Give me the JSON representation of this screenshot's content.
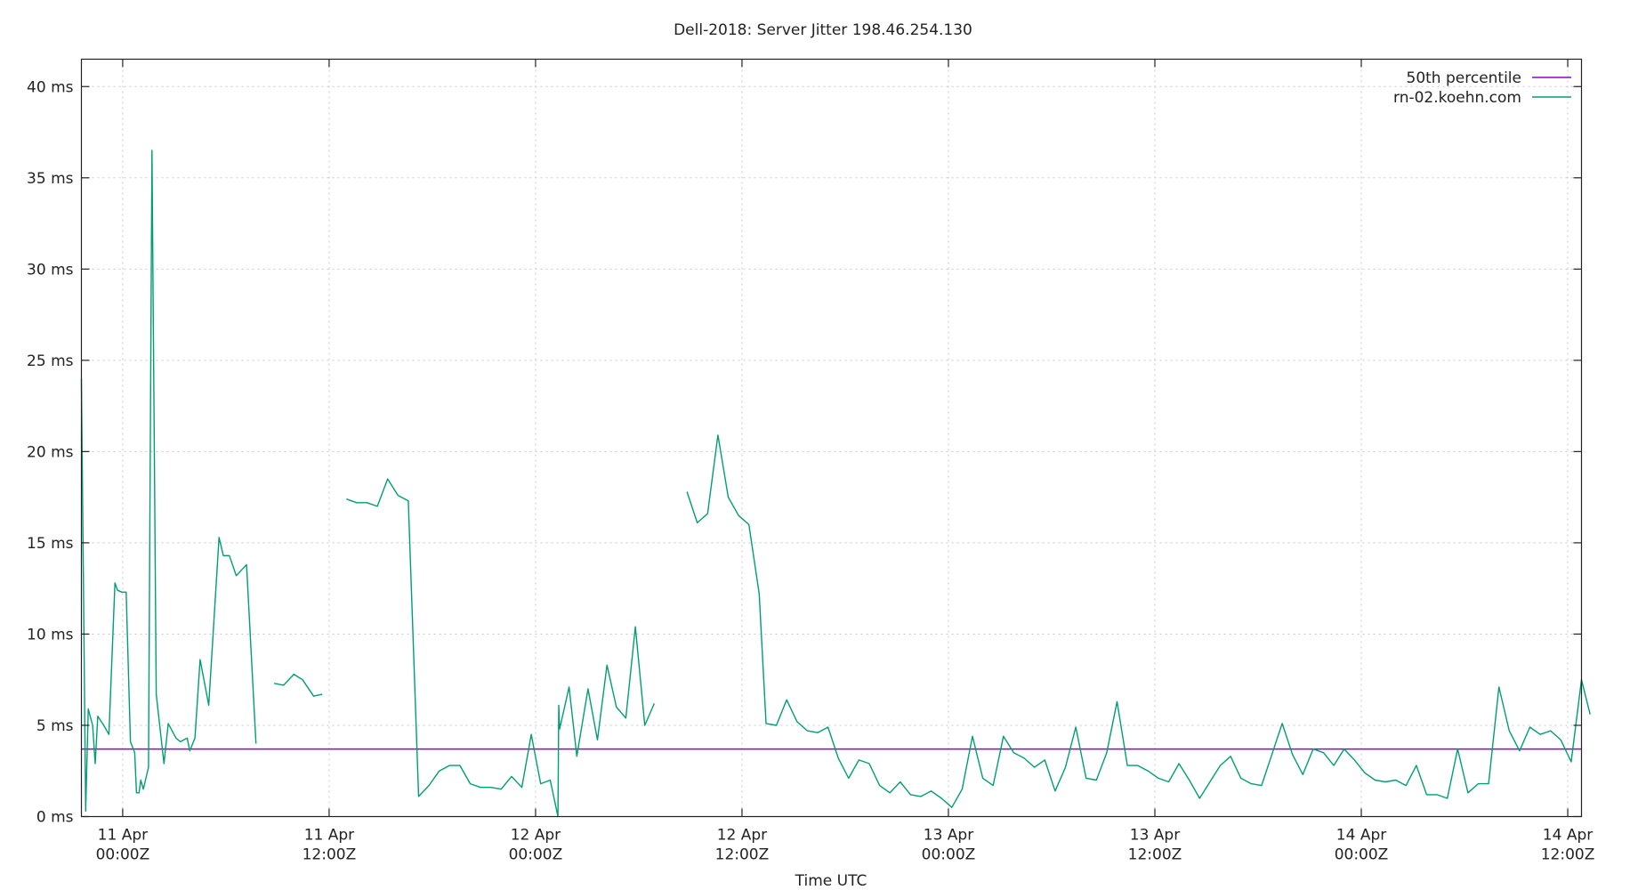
{
  "chart_data": {
    "type": "line",
    "title": "Dell-2018: Server Jitter 198.46.254.130",
    "xlabel": "Time UTC",
    "ylabel": "",
    "x_unit": "hours since 11 Apr 00:00Z",
    "xlim": [
      -2.4,
      84.8
    ],
    "ylim": [
      0,
      41.5
    ],
    "y_ticks": [
      {
        "value": 0,
        "label": "0 ms"
      },
      {
        "value": 5,
        "label": "5 ms"
      },
      {
        "value": 10,
        "label": "10 ms"
      },
      {
        "value": 15,
        "label": "15 ms"
      },
      {
        "value": 20,
        "label": "20 ms"
      },
      {
        "value": 25,
        "label": "25 ms"
      },
      {
        "value": 30,
        "label": "30 ms"
      },
      {
        "value": 35,
        "label": "35 ms"
      },
      {
        "value": 40,
        "label": "40 ms"
      }
    ],
    "x_ticks": [
      {
        "value": 0,
        "line1": "11 Apr",
        "line2": "00:00Z"
      },
      {
        "value": 12,
        "line1": "11 Apr",
        "line2": "12:00Z"
      },
      {
        "value": 24,
        "line1": "12 Apr",
        "line2": "00:00Z"
      },
      {
        "value": 36,
        "line1": "12 Apr",
        "line2": "12:00Z"
      },
      {
        "value": 48,
        "line1": "13 Apr",
        "line2": "00:00Z"
      },
      {
        "value": 60,
        "line1": "13 Apr",
        "line2": "12:00Z"
      },
      {
        "value": 72,
        "line1": "14 Apr",
        "line2": "00:00Z"
      },
      {
        "value": 84,
        "line1": "14 Apr",
        "line2": "12:00Z"
      }
    ],
    "grid": true,
    "legend_position": "top-right",
    "series": [
      {
        "name": "50th percentile",
        "color": "#9400d3",
        "kind": "hline",
        "value": 3.7
      },
      {
        "name": "rn-02.koehn.com",
        "color": "#009e73",
        "kind": "line",
        "segments": [
          [
            [
              -2.4,
              24
            ],
            [
              -2.15,
              0.3
            ],
            [
              -2.0,
              5.9
            ],
            [
              -1.75,
              5.0
            ],
            [
              -1.6,
              2.9
            ],
            [
              -1.45,
              5.5
            ],
            [
              -1.1,
              5.0
            ],
            [
              -0.8,
              4.5
            ],
            [
              -0.45,
              12.8
            ],
            [
              -0.3,
              12.4
            ],
            [
              -0.05,
              12.3
            ],
            [
              0.2,
              12.3
            ],
            [
              0.45,
              4.1
            ],
            [
              0.7,
              3.5
            ],
            [
              0.8,
              1.3
            ],
            [
              0.95,
              1.3
            ],
            [
              1.05,
              2.0
            ],
            [
              1.2,
              1.5
            ],
            [
              1.5,
              2.7
            ],
            [
              1.7,
              36.5
            ],
            [
              1.95,
              6.7
            ],
            [
              2.4,
              2.9
            ],
            [
              2.65,
              5.1
            ],
            [
              3.1,
              4.3
            ],
            [
              3.35,
              4.1
            ],
            [
              3.75,
              4.3
            ],
            [
              3.9,
              3.6
            ],
            [
              4.2,
              4.3
            ],
            [
              4.5,
              8.6
            ],
            [
              5.0,
              6.1
            ],
            [
              5.6,
              15.3
            ],
            [
              5.85,
              14.3
            ],
            [
              6.2,
              14.3
            ],
            [
              6.6,
              13.2
            ],
            [
              7.2,
              13.8
            ],
            [
              7.75,
              4.0
            ]
          ],
          [
            [
              8.8,
              7.3
            ],
            [
              9.35,
              7.2
            ],
            [
              9.95,
              7.8
            ],
            [
              10.45,
              7.5
            ],
            [
              11.1,
              6.6
            ],
            [
              11.6,
              6.7
            ]
          ],
          [
            [
              13.0,
              17.4
            ],
            [
              13.6,
              17.2
            ],
            [
              14.2,
              17.2
            ],
            [
              14.8,
              17.0
            ],
            [
              15.4,
              18.5
            ],
            [
              16.0,
              17.6
            ],
            [
              16.6,
              17.3
            ],
            [
              17.2,
              1.1
            ],
            [
              17.8,
              1.7
            ],
            [
              18.4,
              2.5
            ],
            [
              19.0,
              2.8
            ],
            [
              19.6,
              2.8
            ],
            [
              20.2,
              1.8
            ],
            [
              20.8,
              1.6
            ],
            [
              21.4,
              1.6
            ],
            [
              22.0,
              1.5
            ],
            [
              22.6,
              2.2
            ],
            [
              23.2,
              1.6
            ],
            [
              23.75,
              4.5
            ],
            [
              24.3,
              1.8
            ],
            [
              24.85,
              2.0
            ],
            [
              25.3,
              0.0
            ],
            [
              25.35,
              6.1
            ],
            [
              25.4,
              4.8
            ],
            [
              25.95,
              7.1
            ],
            [
              26.4,
              3.3
            ],
            [
              27.05,
              7.0
            ],
            [
              27.6,
              4.2
            ],
            [
              28.15,
              8.3
            ],
            [
              28.7,
              6.0
            ],
            [
              29.25,
              5.4
            ],
            [
              29.8,
              10.4
            ],
            [
              30.35,
              5.0
            ],
            [
              30.9,
              6.2
            ]
          ],
          [
            [
              32.8,
              17.8
            ],
            [
              33.4,
              16.1
            ],
            [
              34.0,
              16.6
            ],
            [
              34.6,
              20.9
            ],
            [
              35.2,
              17.5
            ],
            [
              35.8,
              16.5
            ],
            [
              36.4,
              16.0
            ],
            [
              37.0,
              12.2
            ],
            [
              37.4,
              5.1
            ],
            [
              38.0,
              5.0
            ],
            [
              38.6,
              6.4
            ],
            [
              39.2,
              5.2
            ],
            [
              39.8,
              4.7
            ],
            [
              40.4,
              4.6
            ],
            [
              41.0,
              4.9
            ],
            [
              41.6,
              3.2
            ],
            [
              42.2,
              2.1
            ],
            [
              42.8,
              3.1
            ],
            [
              43.4,
              2.9
            ],
            [
              44.0,
              1.7
            ],
            [
              44.6,
              1.3
            ],
            [
              45.2,
              1.9
            ],
            [
              45.8,
              1.2
            ],
            [
              46.4,
              1.1
            ],
            [
              47.0,
              1.4
            ],
            [
              47.6,
              1.0
            ],
            [
              48.2,
              0.5
            ],
            [
              48.8,
              1.5
            ],
            [
              49.4,
              4.4
            ],
            [
              50.0,
              2.1
            ],
            [
              50.6,
              1.7
            ],
            [
              51.2,
              4.4
            ],
            [
              51.8,
              3.5
            ],
            [
              52.4,
              3.2
            ],
            [
              53.0,
              2.7
            ],
            [
              53.6,
              3.1
            ],
            [
              54.2,
              1.4
            ],
            [
              54.8,
              2.7
            ],
            [
              55.4,
              4.9
            ],
            [
              56.0,
              2.1
            ],
            [
              56.6,
              2.0
            ],
            [
              57.2,
              3.5
            ],
            [
              57.8,
              6.3
            ],
            [
              58.4,
              2.8
            ],
            [
              59.0,
              2.8
            ],
            [
              59.6,
              2.5
            ],
            [
              60.2,
              2.1
            ],
            [
              60.8,
              1.9
            ],
            [
              61.4,
              2.9
            ],
            [
              62.0,
              2.0
            ],
            [
              62.6,
              1.0
            ],
            [
              63.2,
              1.9
            ],
            [
              63.8,
              2.8
            ],
            [
              64.4,
              3.3
            ],
            [
              65.0,
              2.1
            ],
            [
              65.6,
              1.8
            ],
            [
              66.2,
              1.7
            ],
            [
              66.8,
              3.4
            ],
            [
              67.4,
              5.1
            ],
            [
              68.0,
              3.4
            ],
            [
              68.6,
              2.3
            ],
            [
              69.2,
              3.7
            ],
            [
              69.8,
              3.5
            ],
            [
              70.4,
              2.8
            ],
            [
              71.0,
              3.7
            ],
            [
              71.6,
              3.1
            ],
            [
              72.2,
              2.4
            ],
            [
              72.8,
              2.0
            ],
            [
              73.4,
              1.9
            ],
            [
              74.0,
              2.0
            ],
            [
              74.6,
              1.7
            ],
            [
              75.2,
              2.8
            ],
            [
              75.8,
              1.2
            ],
            [
              76.4,
              1.2
            ],
            [
              77.0,
              1.0
            ],
            [
              77.6,
              3.7
            ],
            [
              78.2,
              1.3
            ],
            [
              78.8,
              1.8
            ],
            [
              79.4,
              1.8
            ],
            [
              80.0,
              7.1
            ],
            [
              80.6,
              4.7
            ],
            [
              81.2,
              3.6
            ],
            [
              81.8,
              4.9
            ],
            [
              82.4,
              4.5
            ],
            [
              83.0,
              4.7
            ],
            [
              83.6,
              4.2
            ],
            [
              84.2,
              3.0
            ],
            [
              84.8,
              7.5
            ],
            [
              85.3,
              5.6
            ]
          ]
        ]
      }
    ]
  }
}
